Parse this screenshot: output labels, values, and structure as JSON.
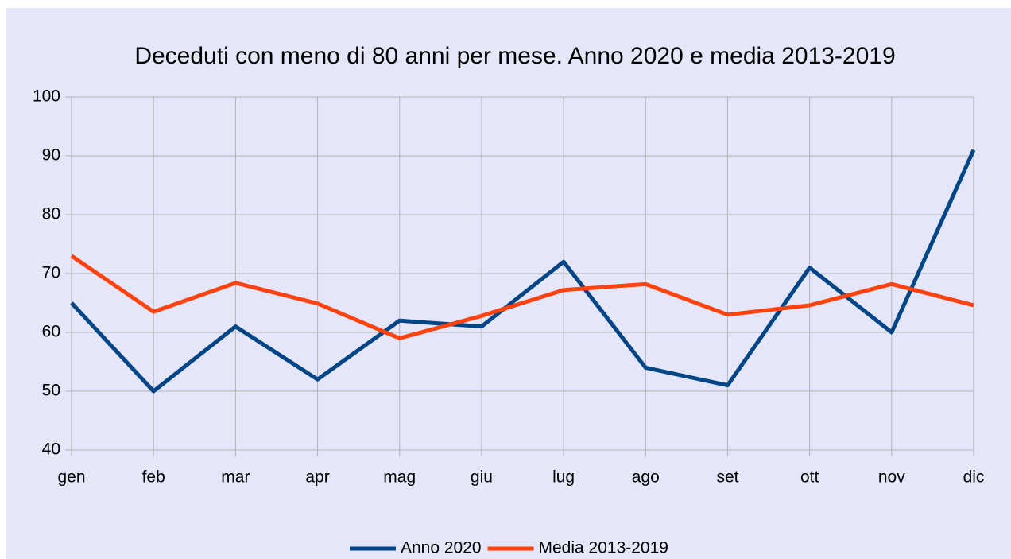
{
  "chart_data": {
    "type": "line",
    "title": "Deceduti con meno di 80 anni per mese. Anno 2020 e media 2013-2019",
    "categories": [
      "gen",
      "feb",
      "mar",
      "apr",
      "mag",
      "giu",
      "lug",
      "ago",
      "set",
      "ott",
      "nov",
      "dic"
    ],
    "series": [
      {
        "name": "Anno 2020",
        "color": "#004586",
        "values": [
          65,
          50,
          61,
          52,
          62,
          61,
          72,
          54,
          51,
          71,
          60,
          91
        ]
      },
      {
        "name": "Media 2013-2019",
        "color": "#ff420e",
        "values": [
          73,
          63.5,
          68.4,
          64.9,
          59,
          62.8,
          67.2,
          68.2,
          63,
          64.6,
          68.2,
          64.6
        ]
      }
    ],
    "ylim": [
      40,
      100
    ],
    "yticks": [
      40,
      50,
      60,
      70,
      80,
      90,
      100
    ],
    "grid": true,
    "legend": "bottom"
  }
}
